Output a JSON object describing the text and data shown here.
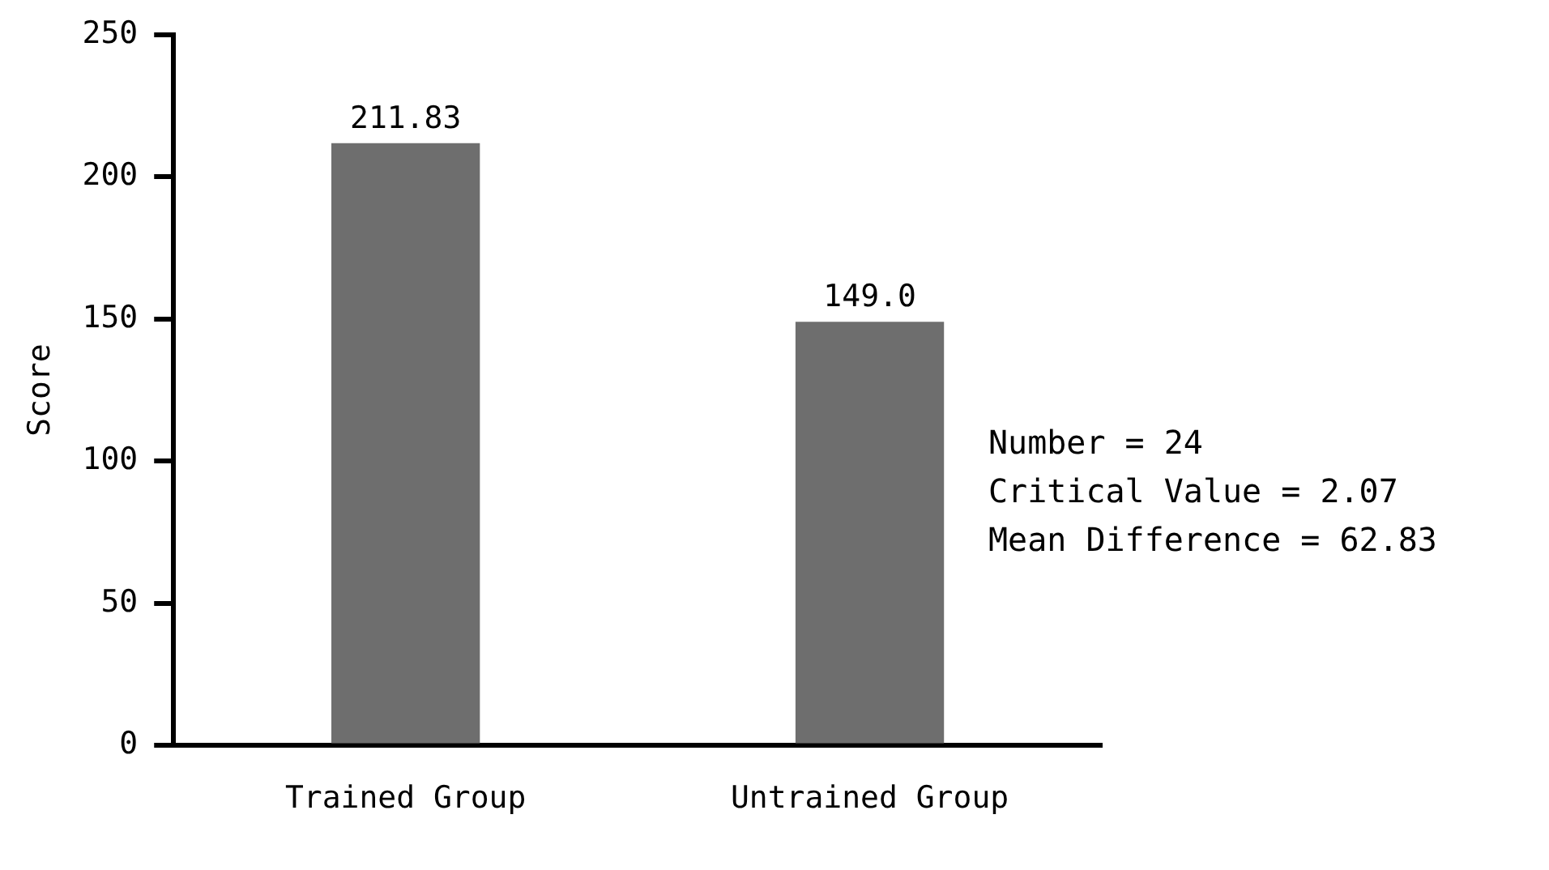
{
  "chart_data": {
    "type": "bar",
    "ylabel": "Score",
    "categories": [
      "Trained Group",
      "Untrained Group"
    ],
    "values": [
      211.83,
      149.0
    ],
    "value_labels": [
      "211.83",
      "149.0"
    ],
    "color": "#6e6e6e",
    "ylim": [
      0,
      250
    ],
    "yticks": [
      0,
      50,
      100,
      150,
      200,
      250
    ],
    "grid": false,
    "legend": false,
    "annotations": [
      "Number = 24",
      "Critical Value = 2.07",
      "Mean Difference = 62.83"
    ]
  }
}
